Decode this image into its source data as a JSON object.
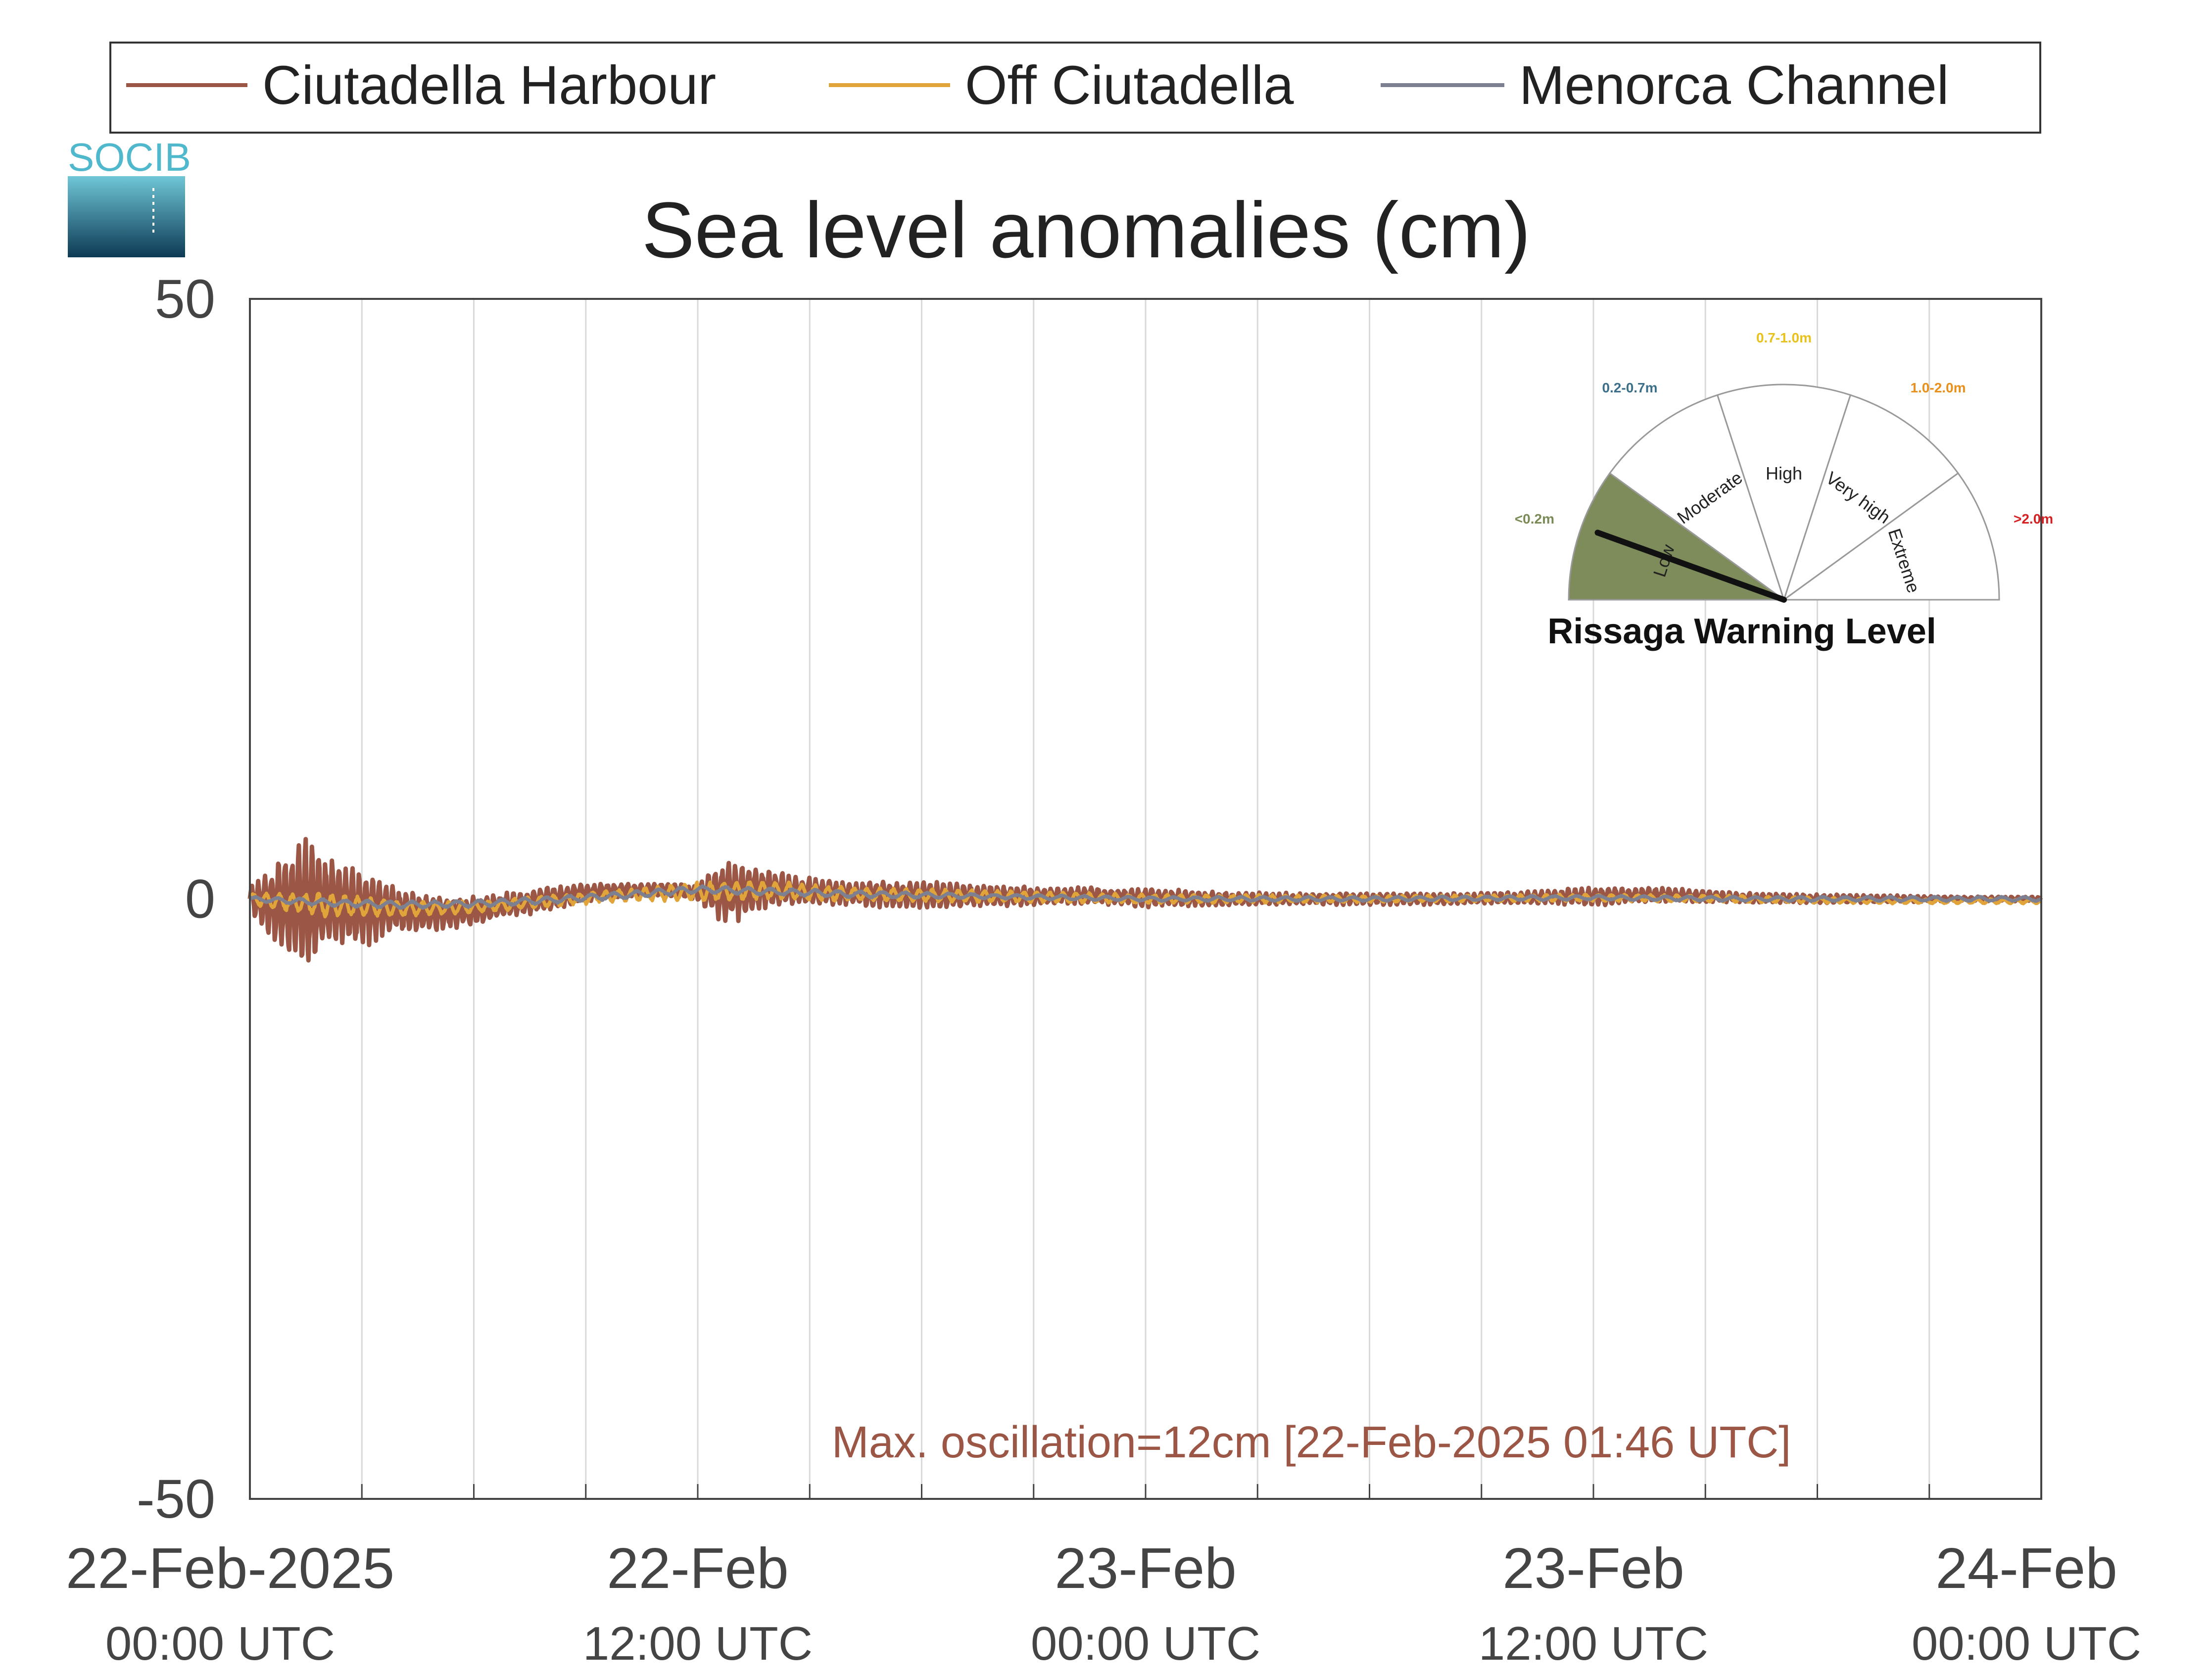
{
  "colors": {
    "harbour": "#9c5645",
    "off": "#e0a43a",
    "channel": "#7c8090",
    "grid": "#d9d9d9",
    "axis": "#444444",
    "logo_top": "#4fb8cc",
    "logo_bottom": "#0d3a55"
  },
  "logo": {
    "text": "SOCIB"
  },
  "chart_data": {
    "type": "line",
    "title": "Sea level anomalies (cm)",
    "ylabel": "",
    "xlabel": "",
    "ylim": [
      -50,
      50
    ],
    "yticks": [
      {
        "value": 50,
        "label": "50"
      },
      {
        "value": 0,
        "label": "0"
      },
      {
        "value": -50,
        "label": "-50"
      }
    ],
    "xlim_hours": [
      0,
      48
    ],
    "xticks": [
      {
        "hours": 0,
        "date": "22-Feb-2025",
        "time": "00:00 UTC"
      },
      {
        "hours": 12,
        "date": "22-Feb",
        "time": "12:00 UTC"
      },
      {
        "hours": 24,
        "date": "23-Feb",
        "time": "00:00 UTC"
      },
      {
        "hours": 36,
        "date": "23-Feb",
        "time": "12:00 UTC"
      },
      {
        "hours": 48,
        "date": "24-Feb",
        "time": "00:00 UTC"
      }
    ],
    "grid": true,
    "grid_step_hours": 3,
    "legend_position": "top",
    "series": [
      {
        "name": "Ciutadella Harbour",
        "color": "#9c5645",
        "x_hours": [
          0,
          1,
          1.5,
          2,
          3,
          4,
          5,
          6,
          7,
          8,
          9,
          10,
          11,
          12,
          12.5,
          13,
          14,
          15,
          16,
          18,
          20,
          22,
          24,
          26,
          28,
          30,
          32,
          34,
          36,
          38,
          40,
          42,
          44,
          46,
          48
        ],
        "mean": [
          0,
          -0.5,
          -0.5,
          -0.5,
          -0.8,
          -1.0,
          -1.2,
          -1.0,
          -0.5,
          0,
          0.5,
          0.7,
          0.8,
          0.5,
          0.5,
          0.6,
          0.8,
          0.6,
          0.4,
          0.3,
          0.2,
          0.3,
          0.1,
          0,
          0,
          0,
          0,
          0.1,
          0.2,
          0.3,
          0.1,
          0,
          0,
          0,
          0
        ],
        "amplitude": [
          1,
          4.5,
          6,
          4,
          3.5,
          1.8,
          1.5,
          1.2,
          1.1,
          1.0,
          0.8,
          0.6,
          0.5,
          0.7,
          2.2,
          2.8,
          1.6,
          1.2,
          1.0,
          1.2,
          0.9,
          0.7,
          0.8,
          0.6,
          0.5,
          0.5,
          0.5,
          0.5,
          0.8,
          0.6,
          0.4,
          0.4,
          0.3,
          0.2,
          0.2
        ]
      },
      {
        "name": "Off Ciutadella",
        "color": "#e0a43a",
        "x_hours": [
          0,
          2,
          4,
          6,
          8,
          10,
          12,
          14,
          16,
          20,
          24,
          30,
          36,
          40,
          44,
          48
        ],
        "mean": [
          0,
          -0.5,
          -0.8,
          -0.7,
          -0.2,
          0.3,
          0.6,
          0.7,
          0.4,
          0.2,
          0,
          0,
          0.1,
          0,
          -0.2,
          -0.2
        ],
        "amplitude": [
          0.5,
          1.0,
          0.7,
          0.5,
          0.5,
          0.5,
          0.8,
          0.8,
          0.6,
          0.5,
          0.4,
          0.3,
          0.3,
          0.3,
          0.2,
          0.2
        ]
      },
      {
        "name": "Menorca Channel",
        "color": "#7c8090",
        "x_hours": [
          0,
          2,
          4,
          6,
          8,
          10,
          12,
          14,
          16,
          20,
          24,
          30,
          36,
          40,
          44,
          48
        ],
        "mean": [
          0,
          -0.3,
          -0.5,
          -0.4,
          -0.1,
          0.3,
          0.8,
          0.6,
          0.4,
          0.2,
          0,
          0,
          0.1,
          0,
          0,
          0
        ],
        "amplitude": [
          0.2,
          0.3,
          0.3,
          0.3,
          0.3,
          0.3,
          0.3,
          0.3,
          0.3,
          0.2,
          0.2,
          0.2,
          0.2,
          0.2,
          0.2,
          0.2
        ]
      }
    ],
    "annotation": {
      "text": "Max. oscillation=12cm [22-Feb-2025 01:46 UTC]",
      "color": "#9c5645"
    }
  },
  "gauge": {
    "title": "Rissaga Warning Level",
    "level": "Low",
    "level_value": 0.1,
    "segments": [
      {
        "label": "Low",
        "range": "<0.2m",
        "range_color": "#7a8a55",
        "fill": "#7d8c5a",
        "active": true
      },
      {
        "label": "Moderate",
        "range": "0.2-0.7m",
        "range_color": "#3c6f8a",
        "fill": "#ffffff",
        "active": false
      },
      {
        "label": "High",
        "range": "0.7-1.0m",
        "range_color": "#e8c21a",
        "fill": "#ffffff",
        "active": false
      },
      {
        "label": "Very high",
        "range": "1.0-2.0m",
        "range_color": "#e8901a",
        "fill": "#ffffff",
        "active": false
      },
      {
        "label": "Extreme",
        "range": ">2.0m",
        "range_color": "#d42020",
        "fill": "#ffffff",
        "active": false
      }
    ]
  }
}
